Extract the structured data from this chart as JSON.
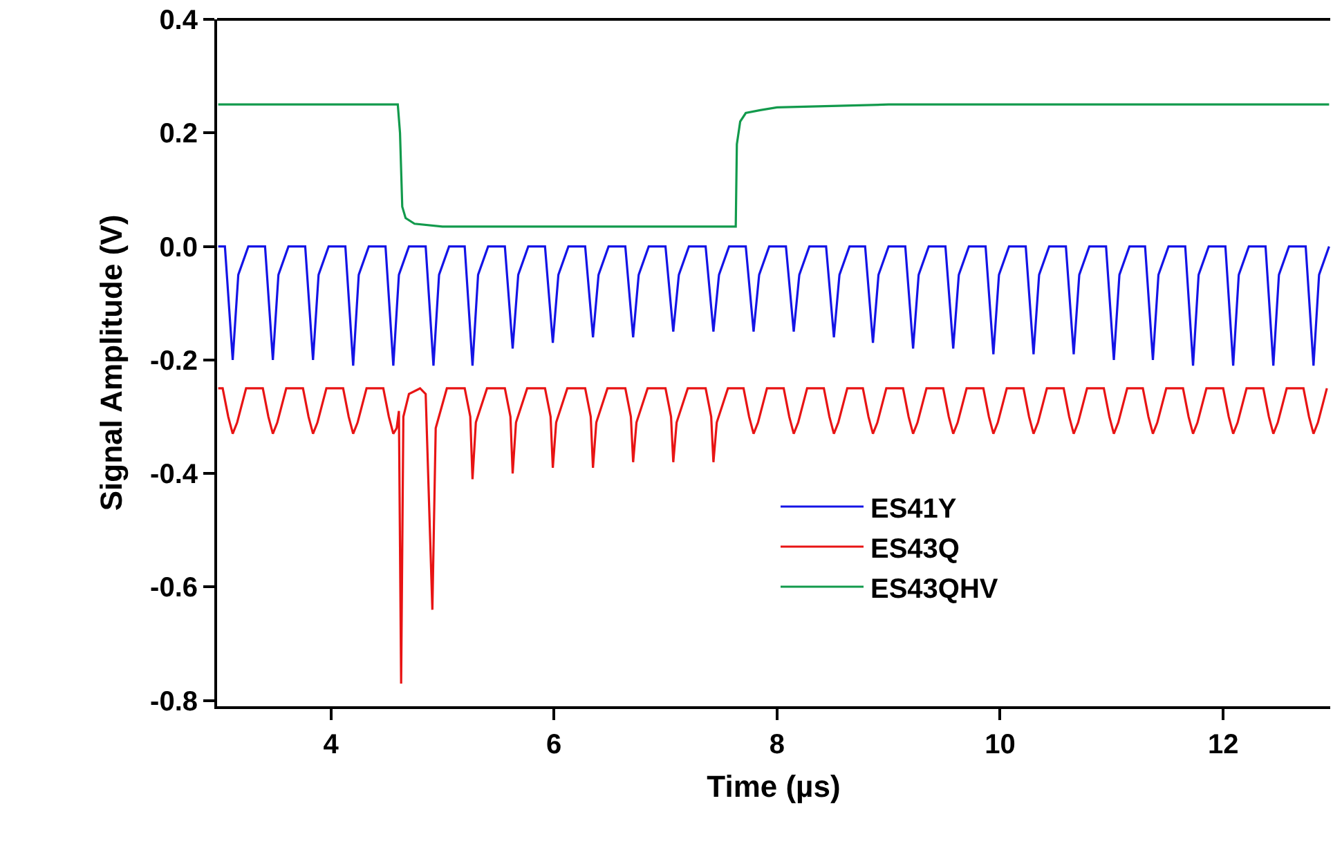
{
  "chart_data": {
    "type": "line",
    "xlabel": "Time (µs)",
    "ylabel": "Signal Amplitude (V)",
    "xlim": [
      2.98,
      12.96
    ],
    "ylim": [
      -0.81,
      0.4
    ],
    "xticks": [
      4,
      6,
      8,
      10,
      12
    ],
    "yticks": [
      0.4,
      0.2,
      {
        "value": 0,
        "label": "0.0"
      },
      -0.2,
      -0.4,
      -0.6,
      -0.8
    ],
    "legend": "bottom right",
    "line_style": "solid",
    "marker": "none",
    "series": [
      {
        "name": "ES41Y",
        "color": "#1414e6",
        "x": [
          2.99,
          3.05,
          3.12,
          3.17,
          3.26,
          3.41,
          3.48,
          3.53,
          3.62,
          3.77,
          3.84,
          3.89,
          3.98,
          4.13,
          4.2,
          4.25,
          4.34,
          4.49,
          4.56,
          4.61,
          4.7,
          4.85,
          4.92,
          4.97,
          5.06,
          5.2,
          5.27,
          5.32,
          5.41,
          5.56,
          5.63,
          5.68,
          5.77,
          5.92,
          5.99,
          6.04,
          6.13,
          6.28,
          6.35,
          6.4,
          6.49,
          6.64,
          6.71,
          6.76,
          6.85,
          7.0,
          7.07,
          7.12,
          7.21,
          7.36,
          7.43,
          7.48,
          7.57,
          7.72,
          7.79,
          7.84,
          7.93,
          8.08,
          8.15,
          8.2,
          8.29,
          8.44,
          8.51,
          8.56,
          8.65,
          8.79,
          8.86,
          8.91,
          9.0,
          9.15,
          9.22,
          9.27,
          9.36,
          9.51,
          9.58,
          9.63,
          9.72,
          9.87,
          9.94,
          9.99,
          10.08,
          10.23,
          10.3,
          10.35,
          10.44,
          10.59,
          10.66,
          10.71,
          10.8,
          10.95,
          11.02,
          11.07,
          11.16,
          11.3,
          11.37,
          11.42,
          11.51,
          11.66,
          11.73,
          11.78,
          11.87,
          12.02,
          12.09,
          12.14,
          12.23,
          12.38,
          12.45,
          12.5,
          12.59,
          12.74,
          12.81,
          12.86,
          12.95
        ],
        "values": [
          0,
          0,
          -0.2,
          -0.05,
          0,
          0,
          -0.2,
          -0.05,
          0,
          0,
          -0.2,
          -0.05,
          0,
          0,
          -0.21,
          -0.05,
          0,
          0,
          -0.21,
          -0.05,
          0,
          0,
          -0.21,
          -0.05,
          0,
          0,
          -0.21,
          -0.05,
          0,
          0,
          -0.18,
          -0.05,
          0,
          0,
          -0.17,
          -0.05,
          0,
          0,
          -0.16,
          -0.05,
          0,
          0,
          -0.16,
          -0.05,
          0,
          0,
          -0.15,
          -0.05,
          0,
          0,
          -0.15,
          -0.05,
          0,
          0,
          -0.15,
          -0.05,
          0,
          0,
          -0.15,
          -0.05,
          0,
          0,
          -0.16,
          -0.05,
          0,
          0,
          -0.17,
          -0.05,
          0,
          0,
          -0.18,
          -0.05,
          0,
          0,
          -0.18,
          -0.05,
          0,
          0,
          -0.19,
          -0.05,
          0,
          0,
          -0.19,
          -0.05,
          0,
          0,
          -0.19,
          -0.05,
          0,
          0,
          -0.2,
          -0.05,
          0,
          0,
          -0.2,
          -0.05,
          0,
          0,
          -0.21,
          -0.05,
          0,
          0,
          -0.21,
          -0.05,
          0,
          0,
          -0.21,
          -0.05,
          0,
          0,
          -0.21,
          -0.05,
          0
        ]
      },
      {
        "name": "ES43Q",
        "color": "#e81414",
        "x": [
          2.99,
          3.03,
          3.08,
          3.12,
          3.16,
          3.24,
          3.39,
          3.44,
          3.48,
          3.52,
          3.6,
          3.75,
          3.8,
          3.84,
          3.88,
          3.96,
          4.11,
          4.16,
          4.2,
          4.24,
          4.32,
          4.47,
          4.52,
          4.56,
          4.59,
          4.61,
          4.63,
          4.65,
          4.7,
          4.8,
          4.85,
          4.91,
          4.94,
          5.04,
          5.2,
          5.25,
          5.27,
          5.3,
          5.4,
          5.56,
          5.61,
          5.63,
          5.66,
          5.76,
          5.92,
          5.97,
          5.99,
          6.02,
          6.12,
          6.28,
          6.33,
          6.35,
          6.38,
          6.48,
          6.64,
          6.69,
          6.71,
          6.74,
          6.84,
          7.0,
          7.05,
          7.07,
          7.1,
          7.2,
          7.36,
          7.41,
          7.43,
          7.46,
          7.56,
          7.7,
          7.75,
          7.79,
          7.83,
          7.91,
          8.06,
          8.11,
          8.15,
          8.19,
          8.27,
          8.42,
          8.47,
          8.51,
          8.55,
          8.63,
          8.77,
          8.82,
          8.86,
          8.9,
          8.98,
          9.13,
          9.18,
          9.22,
          9.26,
          9.34,
          9.49,
          9.54,
          9.58,
          9.62,
          9.7,
          9.85,
          9.9,
          9.94,
          9.98,
          10.06,
          10.21,
          10.26,
          10.3,
          10.34,
          10.42,
          10.57,
          10.62,
          10.66,
          10.7,
          10.78,
          10.93,
          10.98,
          11.02,
          11.06,
          11.14,
          11.28,
          11.33,
          11.37,
          11.41,
          11.49,
          11.64,
          11.69,
          11.73,
          11.77,
          11.85,
          12.0,
          12.05,
          12.09,
          12.13,
          12.21,
          12.36,
          12.41,
          12.45,
          12.49,
          12.57,
          12.72,
          12.77,
          12.81,
          12.85,
          12.93
        ],
        "values": [
          -0.25,
          -0.25,
          -0.3,
          -0.33,
          -0.31,
          -0.25,
          -0.25,
          -0.3,
          -0.33,
          -0.31,
          -0.25,
          -0.25,
          -0.3,
          -0.33,
          -0.31,
          -0.25,
          -0.25,
          -0.3,
          -0.33,
          -0.31,
          -0.25,
          -0.25,
          -0.3,
          -0.33,
          -0.32,
          -0.29,
          -0.77,
          -0.3,
          -0.26,
          -0.25,
          -0.26,
          -0.64,
          -0.32,
          -0.25,
          -0.25,
          -0.3,
          -0.41,
          -0.31,
          -0.25,
          -0.25,
          -0.3,
          -0.4,
          -0.31,
          -0.25,
          -0.25,
          -0.3,
          -0.39,
          -0.31,
          -0.25,
          -0.25,
          -0.3,
          -0.39,
          -0.31,
          -0.25,
          -0.25,
          -0.3,
          -0.38,
          -0.31,
          -0.25,
          -0.25,
          -0.3,
          -0.38,
          -0.31,
          -0.25,
          -0.25,
          -0.3,
          -0.38,
          -0.31,
          -0.25,
          -0.25,
          -0.3,
          -0.33,
          -0.31,
          -0.25,
          -0.25,
          -0.3,
          -0.33,
          -0.31,
          -0.25,
          -0.25,
          -0.3,
          -0.33,
          -0.31,
          -0.25,
          -0.25,
          -0.3,
          -0.33,
          -0.31,
          -0.25,
          -0.25,
          -0.3,
          -0.33,
          -0.31,
          -0.25,
          -0.25,
          -0.3,
          -0.33,
          -0.31,
          -0.25,
          -0.25,
          -0.3,
          -0.33,
          -0.31,
          -0.25,
          -0.25,
          -0.3,
          -0.33,
          -0.31,
          -0.25,
          -0.25,
          -0.3,
          -0.33,
          -0.31,
          -0.25,
          -0.25,
          -0.3,
          -0.33,
          -0.31,
          -0.25,
          -0.25,
          -0.3,
          -0.33,
          -0.31,
          -0.25,
          -0.25,
          -0.3,
          -0.33,
          -0.31,
          -0.25,
          -0.25,
          -0.3,
          -0.33,
          -0.31,
          -0.25,
          -0.25,
          -0.3,
          -0.33,
          -0.31,
          -0.25,
          -0.25,
          -0.3,
          -0.33,
          -0.31,
          -0.25
        ]
      },
      {
        "name": "ES43QHV",
        "color": "#129a4c",
        "x": [
          2.99,
          3.5,
          4.0,
          4.6,
          4.62,
          4.64,
          4.67,
          4.75,
          5.0,
          6.0,
          7.0,
          7.63,
          7.64,
          7.67,
          7.72,
          7.85,
          8.0,
          9.0,
          10.0,
          11.0,
          12.0,
          12.95
        ],
        "values": [
          0.25,
          0.25,
          0.25,
          0.25,
          0.2,
          0.07,
          0.05,
          0.04,
          0.035,
          0.035,
          0.035,
          0.035,
          0.18,
          0.22,
          0.235,
          0.24,
          0.245,
          0.25,
          0.25,
          0.25,
          0.25,
          0.25
        ]
      }
    ]
  }
}
